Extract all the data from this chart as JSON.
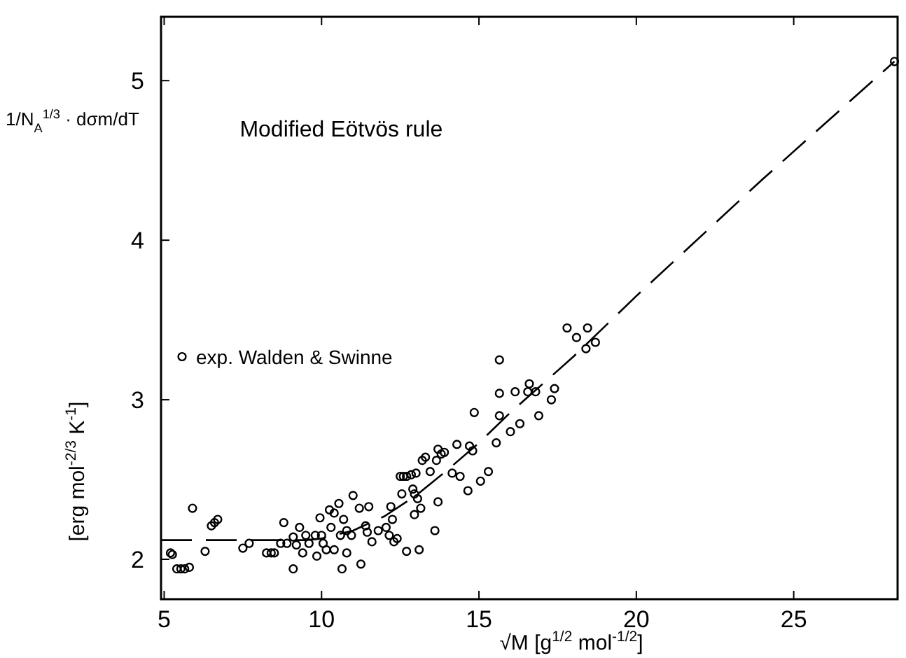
{
  "chart_data": {
    "type": "scatter",
    "title": "Modified Eötvös rule",
    "xlabel": "√M  [g$^{1/2}$ mol$^{-1/2}$]",
    "ylabel": "[erg mol$^{-2/3}$ K$^{-1}$]",
    "annotations": [
      "1/N$_{A}$$^{1/3}$ · dσm/dT"
    ],
    "xlim": [
      4.9,
      28.3
    ],
    "xticks": [
      5,
      10,
      15,
      20,
      25
    ],
    "ylim": [
      1.75,
      5.4
    ],
    "yticks": [
      2,
      3,
      4,
      5
    ],
    "grid": false,
    "legend": "left",
    "series": [
      {
        "name": "exp. Walden & Swinne",
        "marker": "circle",
        "color": "#000000",
        "x": [
          5.2,
          5.26,
          5.4,
          5.53,
          5.65,
          5.8,
          5.9,
          6.3,
          6.5,
          6.6,
          6.7,
          7.5,
          7.7,
          8.25,
          8.4,
          8.5,
          8.7,
          8.8,
          8.9,
          9.1,
          9.1,
          9.2,
          9.3,
          9.4,
          9.5,
          9.6,
          9.85,
          9.8,
          9.95,
          10.0,
          10.05,
          10.15,
          10.25,
          10.3,
          10.4,
          10.4,
          10.55,
          10.6,
          10.65,
          10.7,
          10.8,
          10.8,
          10.95,
          11.0,
          11.2,
          11.25,
          11.4,
          11.45,
          11.5,
          11.6,
          11.8,
          12.05,
          12.15,
          12.2,
          12.25,
          12.3,
          12.4,
          12.55,
          12.5,
          12.6,
          12.7,
          12.7,
          12.85,
          12.9,
          12.95,
          12.95,
          13.0,
          13.05,
          13.1,
          13.15,
          13.2,
          13.3,
          13.45,
          13.6,
          13.65,
          13.7,
          13.7,
          13.8,
          13.9,
          14.15,
          14.3,
          14.4,
          14.65,
          14.7,
          14.8,
          15.05,
          15.3,
          15.55,
          18.1,
          18.4,
          18.7,
          15.65,
          15.65,
          16.15,
          16.6,
          16.55,
          16.8,
          17.4,
          17.3,
          16.9,
          14.85,
          15.65,
          16.3,
          16.0,
          17.8,
          18.45,
          28.2
        ],
        "values": [
          2.04,
          2.03,
          1.94,
          1.94,
          1.94,
          1.95,
          2.32,
          2.05,
          2.21,
          2.23,
          2.25,
          2.07,
          2.1,
          2.04,
          2.04,
          2.04,
          2.1,
          2.23,
          2.1,
          2.14,
          1.94,
          2.09,
          2.2,
          2.04,
          2.15,
          2.1,
          2.02,
          2.15,
          2.26,
          2.15,
          2.1,
          2.06,
          2.31,
          2.2,
          2.29,
          2.06,
          2.35,
          2.15,
          1.94,
          2.25,
          2.18,
          2.04,
          2.15,
          2.4,
          2.32,
          1.97,
          2.21,
          2.17,
          2.33,
          2.11,
          2.18,
          2.2,
          2.15,
          2.33,
          2.25,
          2.11,
          2.13,
          2.41,
          2.52,
          2.52,
          2.52,
          2.05,
          2.53,
          2.44,
          2.41,
          2.28,
          2.54,
          2.38,
          2.06,
          2.32,
          2.62,
          2.64,
          2.55,
          2.18,
          2.62,
          2.69,
          2.36,
          2.66,
          2.67,
          2.54,
          2.72,
          2.52,
          2.43,
          2.71,
          2.68,
          2.49,
          2.55,
          2.73,
          3.39,
          3.32,
          3.36,
          3.25,
          3.04,
          3.05,
          3.1,
          3.05,
          3.05,
          3.07,
          3.0,
          2.9,
          2.92,
          2.9,
          2.85,
          2.8,
          3.45,
          3.45,
          5.12
        ]
      },
      {
        "type": "line",
        "line_style": "dashed",
        "color": "#000000",
        "x": [
          4.9,
          9.5,
          10,
          11,
          12,
          13,
          14,
          15,
          16,
          18,
          20,
          24,
          28.2
        ],
        "values": [
          2.12,
          2.12,
          2.13,
          2.18,
          2.27,
          2.4,
          2.56,
          2.73,
          2.92,
          3.27,
          3.65,
          4.38,
          5.12
        ]
      }
    ]
  }
}
